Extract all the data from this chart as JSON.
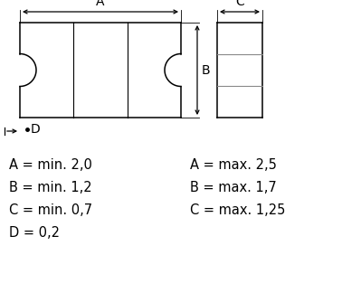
{
  "bg_color": "#ffffff",
  "line_color": "#000000",
  "text_color": "#000000",
  "labels_left": [
    "A = min. 2,0",
    "B = min. 1,2",
    "C = min. 0,7",
    "D = 0,2"
  ],
  "labels_right": [
    "A = max. 2,5",
    "B = max. 1,7",
    "C = max. 1,25",
    ""
  ],
  "label_fontsize": 10.5,
  "figsize": [
    3.99,
    3.24
  ],
  "dpi": 100
}
